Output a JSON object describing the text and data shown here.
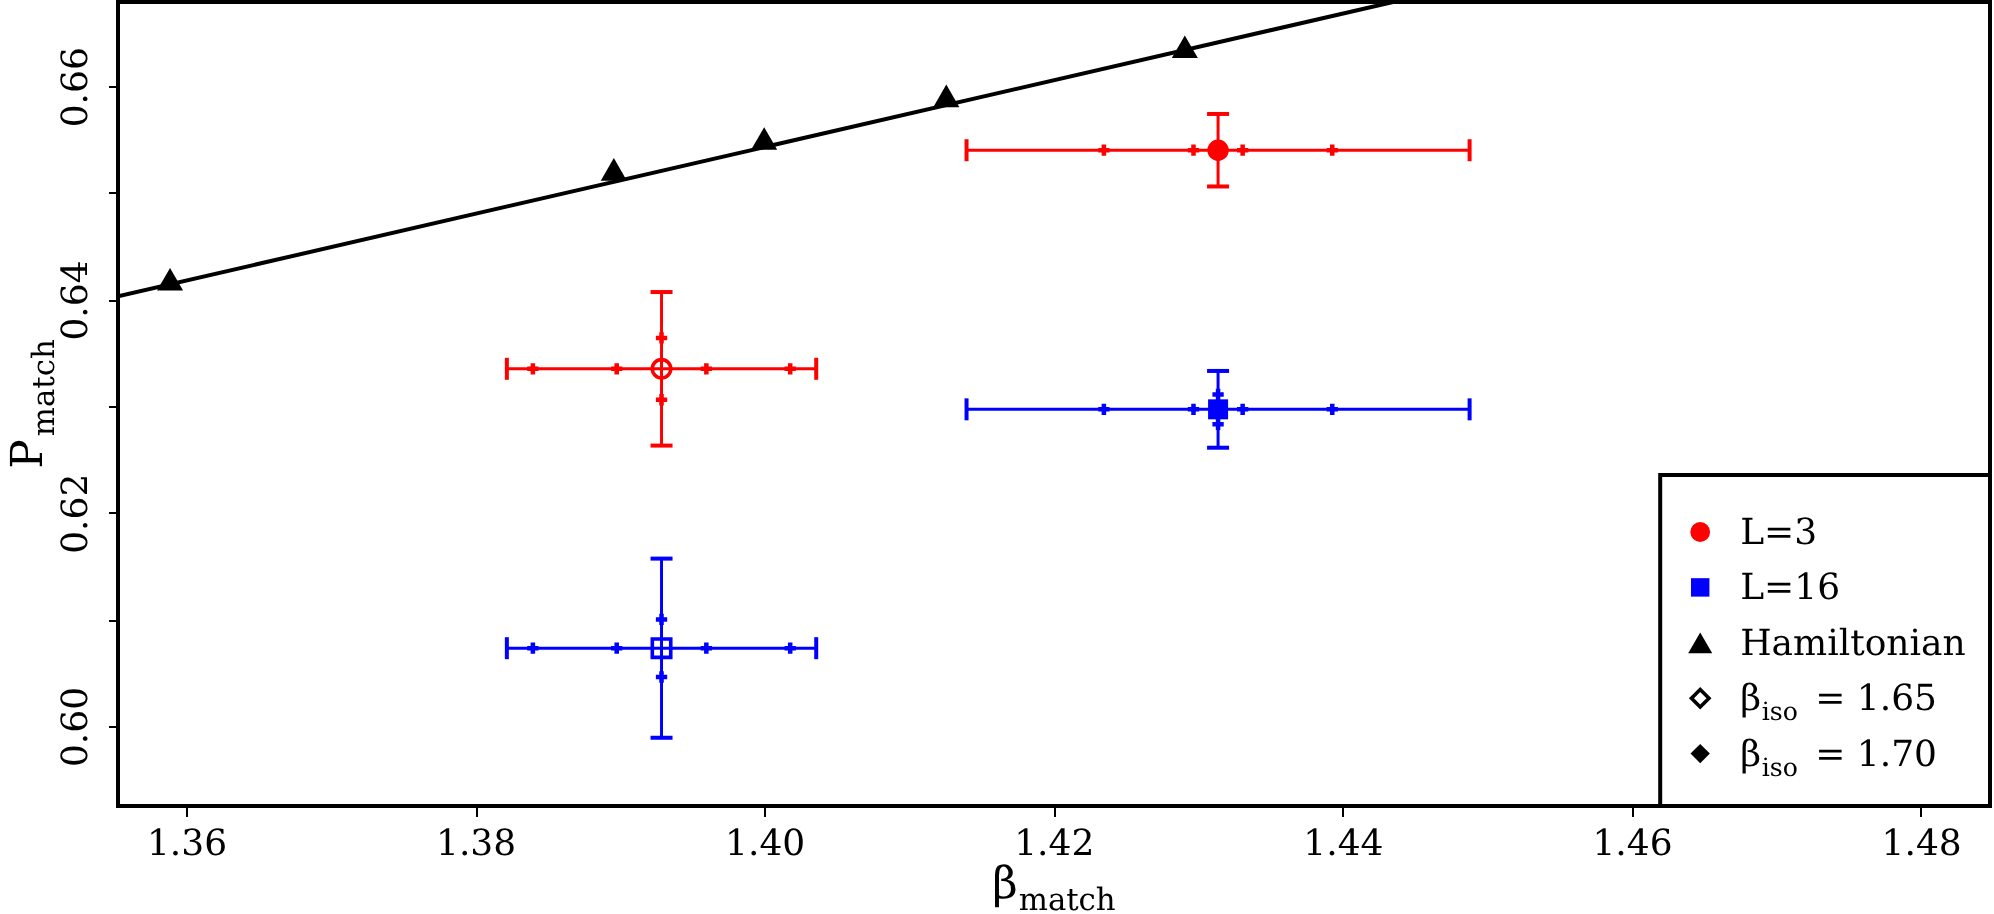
{
  "chart_data": {
    "type": "scatter",
    "xlabel": "β$_{match}$",
    "ylabel": "P$_{match}$",
    "xlim": [
      1.3553,
      1.4848
    ],
    "ylim": [
      0.5925,
      0.6679
    ],
    "xticks": [
      1.36,
      1.38,
      {
        "value": 1.4,
        "label": "1.40"
      },
      1.42,
      1.44,
      1.46,
      1.48
    ],
    "yticks": [
      {
        "value": 0.6,
        "label": "0.60"
      },
      {
        "value": 0.61,
        "label": null
      },
      0.62,
      {
        "value": 0.63,
        "label": null
      },
      0.64,
      {
        "value": 0.65,
        "label": null
      },
      0.66
    ],
    "legend": "bottom right",
    "series": [
      {
        "name": "L=3",
        "color": "#ff0000",
        "marker": "circle",
        "x": [
          1.4314
        ],
        "values": [
          0.654
        ],
        "xerrors": [
          0.0174
        ],
        "errors": [
          0.0034
        ]
      },
      {
        "name": "L=16",
        "color": "#0000ff",
        "marker": "square",
        "x": [
          1.4314
        ],
        "values": [
          0.6297
        ],
        "xerrors": [
          0.0174
        ],
        "errors": [
          0.0036
        ]
      },
      {
        "name": "Hamiltonian",
        "color": "#000000",
        "marker": "triangle",
        "x": [
          1.3589,
          1.3896,
          1.4,
          1.4126,
          1.4291
        ],
        "values": [
          0.6419,
          0.6522,
          0.6551,
          0.6591,
          0.6637
        ]
      },
      {
        "name": "β$_{iso}$ = 1.65",
        "color": "#000000",
        "marker": "diamond-open"
      },
      {
        "name": "β$_{iso}$ = 1.70",
        "color": "#000000",
        "marker": "diamond"
      },
      {
        "color": "#ff0000",
        "marker": "circle-open",
        "x": [
          1.3929
        ],
        "values": [
          0.6335
        ],
        "xerrors": [
          0.0107
        ],
        "errors": [
          0.0072
        ]
      },
      {
        "color": "#0000ff",
        "marker": "square-open",
        "x": [
          1.3929
        ],
        "values": [
          0.6073
        ],
        "xerrors": [
          0.0107
        ],
        "errors": [
          0.0084
        ]
      },
      {
        "color": "#ff0000",
        "marker": "cross",
        "x": [
          1.384,
          1.3898,
          1.396,
          1.4018,
          1.4235,
          1.4297,
          1.4331,
          1.4393,
          1.3929,
          1.3929
        ],
        "values": [
          0.6335,
          0.6335,
          0.6335,
          0.6335,
          0.654,
          0.654,
          0.654,
          0.654,
          0.6306,
          0.6364
        ]
      },
      {
        "color": "#0000ff",
        "marker": "cross",
        "x": [
          1.384,
          1.3898,
          1.396,
          1.4018,
          1.4235,
          1.4297,
          1.4331,
          1.4393,
          1.3929,
          1.3929,
          1.4314,
          1.4314
        ],
        "values": [
          0.6073,
          0.6073,
          0.6073,
          0.6073,
          0.6297,
          0.6297,
          0.6297,
          0.6297,
          0.6046,
          0.61,
          0.6283,
          0.6311
        ]
      },
      {
        "type": "line",
        "color": "#000000",
        "x": [
          1.3553,
          1.4435
        ],
        "values": [
          0.6403,
          0.6679
        ]
      }
    ]
  }
}
